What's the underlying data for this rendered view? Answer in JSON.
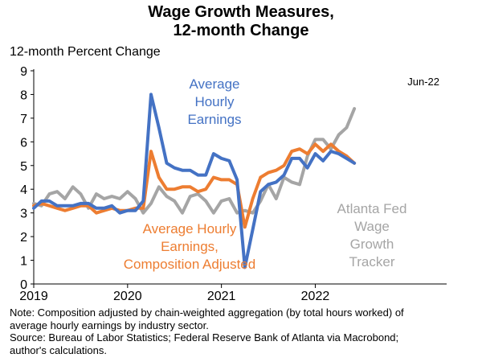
{
  "chart_data": {
    "type": "line",
    "title_lines": [
      "Wage Growth Measures,",
      "12-month Change"
    ],
    "ylabel": "12-month Percent Change",
    "ylim": [
      0,
      9
    ],
    "y_ticks": [
      "0",
      "1",
      "2",
      "3",
      "4",
      "5",
      "6",
      "7",
      "8",
      "9"
    ],
    "x_ticks": [
      "2019",
      "2020",
      "2021",
      "2022"
    ],
    "corner_label": "Jun-22",
    "x_start": "2019-01",
    "series": [
      {
        "name": "Average Hourly Earnings",
        "label_lines": [
          "Average",
          "Hourly",
          "Earnings"
        ],
        "color": "#4472C4",
        "values": [
          3.2,
          3.5,
          3.5,
          3.3,
          3.3,
          3.3,
          3.4,
          3.4,
          3.2,
          3.2,
          3.3,
          3.0,
          3.1,
          3.1,
          3.5,
          8.0,
          6.6,
          5.1,
          4.9,
          4.8,
          4.8,
          4.6,
          4.6,
          5.5,
          5.3,
          5.2,
          4.4,
          0.7,
          2.3,
          3.9,
          4.2,
          4.3,
          4.6,
          5.3,
          5.3,
          4.9,
          5.5,
          5.2,
          5.6,
          5.5,
          5.3,
          5.1
        ]
      },
      {
        "name": "Average Hourly Earnings, Composition Adjusted",
        "label_lines": [
          "Average Hourly",
          "Earnings,",
          "Composition Adjusted"
        ],
        "color": "#ED7D31",
        "values": [
          3.3,
          3.4,
          3.3,
          3.2,
          3.1,
          3.2,
          3.3,
          3.3,
          3.0,
          3.1,
          3.2,
          3.1,
          3.1,
          3.2,
          3.2,
          5.6,
          4.5,
          4.0,
          4.0,
          4.1,
          4.1,
          3.9,
          4.0,
          4.5,
          4.4,
          4.4,
          4.2,
          2.4,
          3.6,
          4.5,
          4.7,
          4.8,
          5.0,
          5.6,
          5.7,
          5.5,
          5.9,
          5.6,
          5.9,
          5.6,
          5.4,
          5.1
        ]
      },
      {
        "name": "Atlanta Fed Wage Growth Tracker",
        "label_lines": [
          "Atlanta Fed",
          "Wage",
          "Growth",
          "Tracker"
        ],
        "color": "#A5A5A5",
        "values": [
          3.4,
          3.3,
          3.8,
          3.9,
          3.6,
          4.1,
          3.8,
          3.2,
          3.8,
          3.6,
          3.7,
          3.6,
          3.9,
          3.6,
          3.0,
          3.4,
          4.1,
          3.7,
          3.5,
          3.0,
          3.7,
          3.8,
          3.5,
          3.0,
          3.5,
          3.6,
          3.0,
          3.1,
          3.0,
          3.5,
          4.2,
          3.6,
          4.5,
          4.3,
          4.2,
          5.4,
          6.1,
          6.1,
          5.7,
          6.3,
          6.6,
          7.4
        ]
      }
    ]
  },
  "notes": [
    "Note: Composition adjusted by chain-weighted aggregation (by total hours worked) of",
    "average hourly earnings by industry sector.",
    "Source: Bureau of Labor Statistics; Federal Reserve Bank of Atlanta via Macrobond;",
    "author's calculations."
  ]
}
